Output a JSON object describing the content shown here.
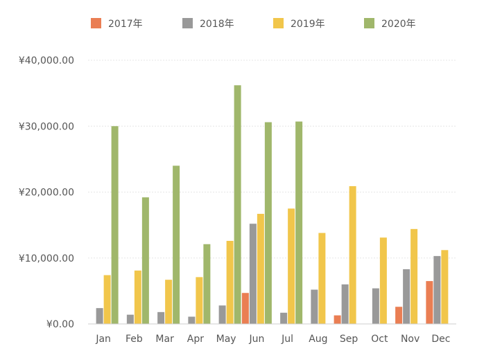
{
  "chart_data": {
    "type": "bar",
    "categories": [
      "Jan",
      "Feb",
      "Mar",
      "Apr",
      "May",
      "Jun",
      "Jul",
      "Aug",
      "Sep",
      "Oct",
      "Nov",
      "Dec"
    ],
    "series": [
      {
        "name": "2017年",
        "color": "#ea7e53",
        "values": [
          0,
          0,
          0,
          0,
          0,
          4700,
          0,
          0,
          1300,
          0,
          2600,
          6500
        ]
      },
      {
        "name": "2018年",
        "color": "#999999",
        "values": [
          2400,
          1400,
          1800,
          1100,
          2800,
          15200,
          1700,
          5200,
          6000,
          5400,
          8300,
          10300
        ]
      },
      {
        "name": "2019年",
        "color": "#f1c64b",
        "values": [
          7400,
          8100,
          6700,
          7100,
          12600,
          16700,
          17500,
          13800,
          20900,
          13100,
          14400,
          11200
        ]
      },
      {
        "name": "2020年",
        "color": "#a0b76b",
        "values": [
          30000,
          19200,
          24000,
          12100,
          36200,
          30600,
          30700,
          0,
          0,
          0,
          0,
          0
        ]
      }
    ],
    "y_ticks": [
      "¥0.00",
      "¥10,000.00",
      "¥20,000.00",
      "¥30,000.00",
      "¥40,000.00"
    ],
    "y_tick_values": [
      0,
      10000,
      20000,
      30000,
      40000
    ],
    "ylim": [
      0,
      40000
    ],
    "legend_position": "top",
    "grid": true,
    "title": "",
    "xlabel": "",
    "ylabel": ""
  }
}
